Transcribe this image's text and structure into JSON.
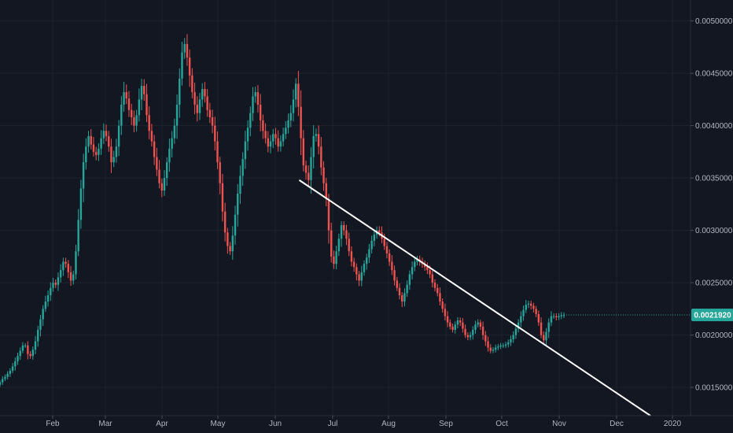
{
  "chart_data": {
    "type": "candlestick",
    "title": "",
    "xlabel": "",
    "ylabel": "",
    "x_tick_labels": [
      "Feb",
      "Mar",
      "Apr",
      "May",
      "Jun",
      "Jul",
      "Aug",
      "Sep",
      "Oct",
      "Nov",
      "Dec",
      "2020"
    ],
    "y_ticks": [
      0.0015,
      0.002,
      0.0025,
      0.003,
      0.0035,
      0.004,
      0.0045,
      0.005
    ],
    "y_tick_labels": [
      "0.0015000",
      "0.0020000",
      "0.0025000",
      "0.0030000",
      "0.0035000",
      "0.0040000",
      "0.0045000",
      "0.0050000"
    ],
    "ylim": [
      0.00123,
      0.0052
    ],
    "grid": true,
    "last_price": 0.002192,
    "last_price_label": "0.0021920",
    "closes": [
      0.00155,
      0.00158,
      0.0016,
      0.00163,
      0.00166,
      0.0017,
      0.00175,
      0.0018,
      0.00185,
      0.0019,
      0.0019,
      0.00182,
      0.0018,
      0.00186,
      0.00194,
      0.00205,
      0.00215,
      0.00225,
      0.00232,
      0.00238,
      0.00245,
      0.0025,
      0.00248,
      0.00255,
      0.00262,
      0.0027,
      0.00268,
      0.0026,
      0.00252,
      0.00258,
      0.0028,
      0.0031,
      0.0034,
      0.00365,
      0.0038,
      0.0039,
      0.00382,
      0.00375,
      0.00372,
      0.00378,
      0.00388,
      0.00395,
      0.0039,
      0.0038,
      0.00365,
      0.0037,
      0.0038,
      0.004,
      0.0042,
      0.00432,
      0.00426,
      0.00415,
      0.00408,
      0.004,
      0.0041,
      0.00425,
      0.00438,
      0.0043,
      0.0041,
      0.00395,
      0.00385,
      0.0037,
      0.00358,
      0.00345,
      0.00338,
      0.0035,
      0.00365,
      0.00378,
      0.00388,
      0.004,
      0.0042,
      0.00445,
      0.0047,
      0.00478,
      0.00465,
      0.00448,
      0.00432,
      0.0042,
      0.00412,
      0.00425,
      0.00435,
      0.00428,
      0.00415,
      0.00408,
      0.004,
      0.00385,
      0.00365,
      0.00345,
      0.00318,
      0.00298,
      0.00285,
      0.0028,
      0.00295,
      0.00315,
      0.00335,
      0.00352,
      0.00368,
      0.00385,
      0.00398,
      0.00412,
      0.00428,
      0.00432,
      0.0042,
      0.00405,
      0.00395,
      0.00388,
      0.0038,
      0.00385,
      0.00392,
      0.00388,
      0.0038,
      0.00385,
      0.00392,
      0.00398,
      0.00405,
      0.00412,
      0.00425,
      0.0044,
      0.00418,
      0.00388,
      0.00362,
      0.00355,
      0.00348,
      0.0037,
      0.0039,
      0.00392,
      0.0038,
      0.0036,
      0.00345,
      0.0033,
      0.003,
      0.00275,
      0.00268,
      0.0028,
      0.00292,
      0.00305,
      0.003,
      0.00292,
      0.0028,
      0.0027,
      0.00265,
      0.00258,
      0.00252,
      0.0026,
      0.00268,
      0.00274,
      0.00282,
      0.0029,
      0.00296,
      0.003,
      0.00298,
      0.00292,
      0.00285,
      0.00278,
      0.0027,
      0.00262,
      0.00252,
      0.00245,
      0.00238,
      0.00232,
      0.0024,
      0.00248,
      0.00258,
      0.00265,
      0.0027,
      0.00272,
      0.0027,
      0.00268,
      0.00265,
      0.00262,
      0.00258,
      0.0025,
      0.00245,
      0.0024,
      0.00232,
      0.00225,
      0.00218,
      0.00212,
      0.00208,
      0.00205,
      0.0021,
      0.00214,
      0.00212,
      0.00206,
      0.002,
      0.00198,
      0.002,
      0.00205,
      0.0021,
      0.00212,
      0.00208,
      0.002,
      0.00194,
      0.00188,
      0.00185,
      0.00186,
      0.00188,
      0.00189,
      0.0019,
      0.0019,
      0.00191,
      0.00193,
      0.00196,
      0.002,
      0.00206,
      0.00212,
      0.00218,
      0.00224,
      0.00229,
      0.0023,
      0.00228,
      0.00225,
      0.0022,
      0.00212,
      0.002,
      0.00195,
      0.00203,
      0.00212,
      0.00218,
      0.00218,
      0.00217,
      0.00218,
      0.00219,
      0.00219
    ],
    "trendline": {
      "start": {
        "x": "2019-06-16",
        "y": 0.00348
      },
      "end": {
        "x": "2019-12-20",
        "y": 0.00123
      }
    }
  }
}
